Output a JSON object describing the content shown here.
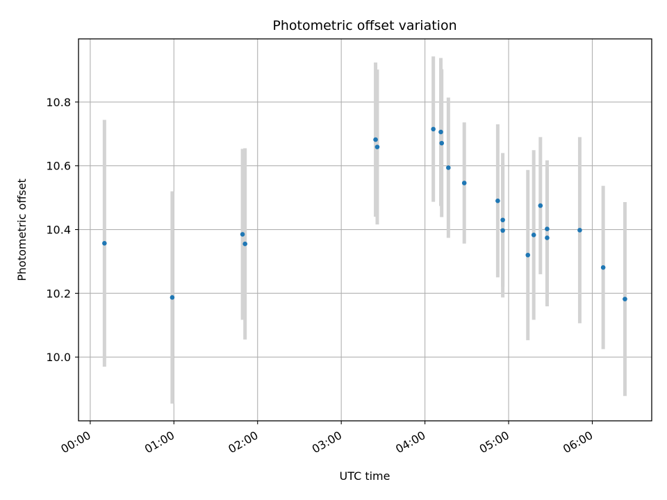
{
  "chart_data": {
    "type": "scatter",
    "title": "Photometric offset variation",
    "xlabel": "UTC time",
    "ylabel": "Photometric offset",
    "x_unit": "hours UTC",
    "xlim": [
      -0.14,
      6.71
    ],
    "ylim": [
      9.8,
      10.998
    ],
    "grid": true,
    "x_ticks": [
      {
        "value": 0,
        "label": "00:00"
      },
      {
        "value": 1,
        "label": "01:00"
      },
      {
        "value": 2,
        "label": "02:00"
      },
      {
        "value": 3,
        "label": "03:00"
      },
      {
        "value": 4,
        "label": "04:00"
      },
      {
        "value": 5,
        "label": "05:00"
      },
      {
        "value": 6,
        "label": "06:00"
      }
    ],
    "y_ticks": [
      {
        "value": 10.0,
        "label": "10.0"
      },
      {
        "value": 10.2,
        "label": "10.2"
      },
      {
        "value": 10.4,
        "label": "10.4"
      },
      {
        "value": 10.6,
        "label": "10.6"
      },
      {
        "value": 10.8,
        "label": "10.8"
      }
    ],
    "series": [
      {
        "point_color": "#1f77b4",
        "errorbar_color": "#d3d3d3",
        "points": [
          {
            "x": 0.17,
            "y": 10.357,
            "err": 0.387
          },
          {
            "x": 0.98,
            "y": 10.187,
            "err": 0.333
          },
          {
            "x": 1.82,
            "y": 10.385,
            "err": 0.268
          },
          {
            "x": 1.85,
            "y": 10.355,
            "err": 0.3
          },
          {
            "x": 3.41,
            "y": 10.682,
            "err": 0.242
          },
          {
            "x": 3.43,
            "y": 10.659,
            "err": 0.243
          },
          {
            "x": 4.1,
            "y": 10.715,
            "err": 0.228
          },
          {
            "x": 4.19,
            "y": 10.706,
            "err": 0.232
          },
          {
            "x": 4.2,
            "y": 10.671,
            "err": 0.232
          },
          {
            "x": 4.28,
            "y": 10.594,
            "err": 0.22
          },
          {
            "x": 4.47,
            "y": 10.546,
            "err": 0.19
          },
          {
            "x": 4.87,
            "y": 10.49,
            "err": 0.24
          },
          {
            "x": 4.93,
            "y": 10.43,
            "err": 0.21
          },
          {
            "x": 4.93,
            "y": 10.397,
            "err": 0.21
          },
          {
            "x": 5.23,
            "y": 10.32,
            "err": 0.267
          },
          {
            "x": 5.3,
            "y": 10.383,
            "err": 0.266
          },
          {
            "x": 5.38,
            "y": 10.475,
            "err": 0.215
          },
          {
            "x": 5.46,
            "y": 10.402,
            "err": 0.215
          },
          {
            "x": 5.46,
            "y": 10.374,
            "err": 0.215
          },
          {
            "x": 5.85,
            "y": 10.398,
            "err": 0.292
          },
          {
            "x": 6.13,
            "y": 10.281,
            "err": 0.256
          },
          {
            "x": 6.39,
            "y": 10.182,
            "err": 0.304
          }
        ]
      }
    ]
  }
}
